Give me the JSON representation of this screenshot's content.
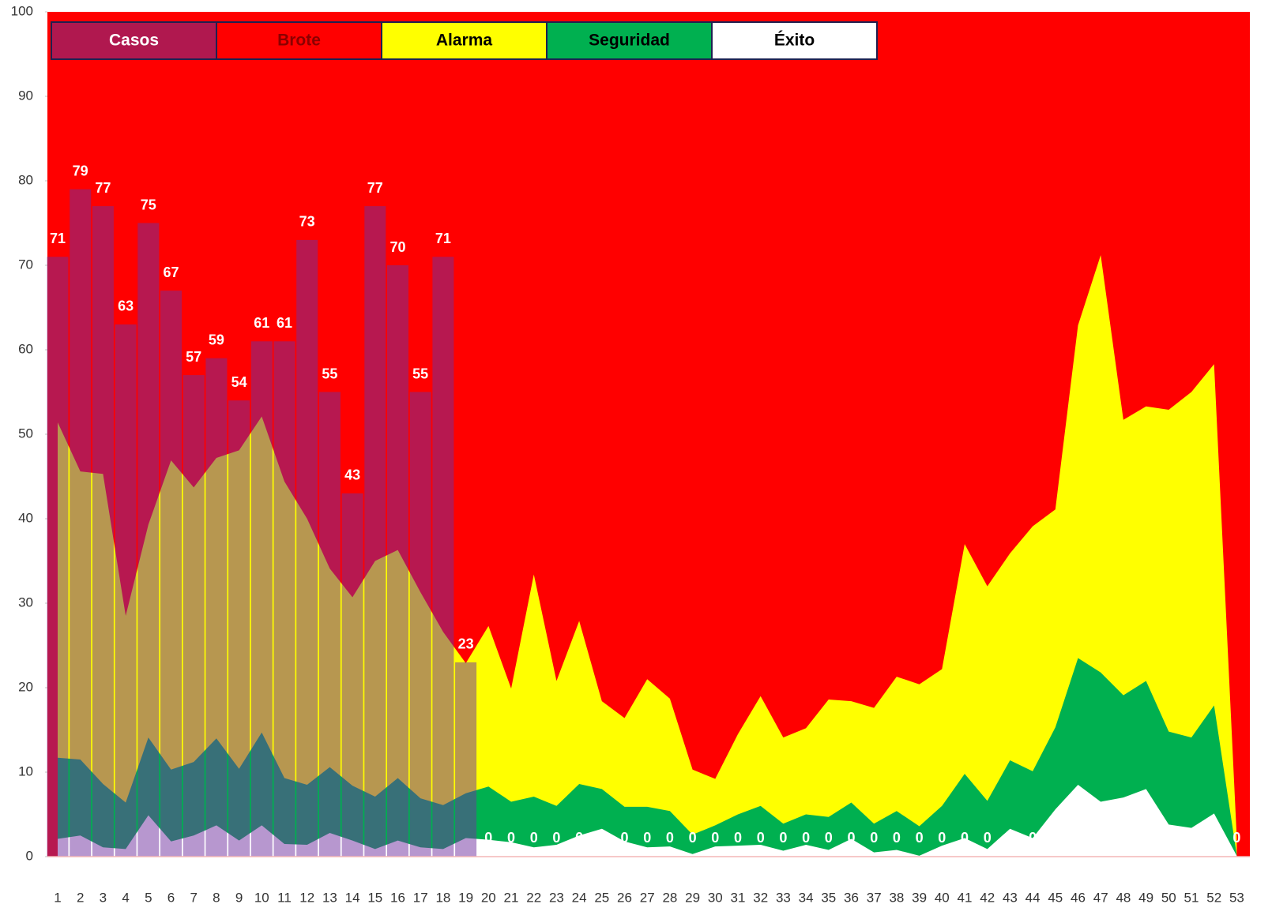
{
  "chart_data": {
    "type": "area",
    "categories": [
      "1",
      "2",
      "3",
      "4",
      "5",
      "6",
      "7",
      "8",
      "9",
      "10",
      "11",
      "12",
      "13",
      "14",
      "15",
      "16",
      "17",
      "18",
      "19",
      "20",
      "21",
      "22",
      "23",
      "24",
      "25",
      "26",
      "27",
      "28",
      "29",
      "30",
      "31",
      "32",
      "33",
      "34",
      "35",
      "36",
      "37",
      "38",
      "39",
      "40",
      "41",
      "42",
      "43",
      "44",
      "45",
      "46",
      "47",
      "48",
      "49",
      "50",
      "51",
      "52",
      "53"
    ],
    "ylim": [
      0,
      100
    ],
    "yticks": [
      0,
      10,
      20,
      30,
      40,
      50,
      60,
      70,
      80,
      90,
      100
    ],
    "series": [
      {
        "name": "Casos",
        "type": "bar",
        "color": "#7030a0",
        "legend_color": "#b0184f",
        "values": [
          71,
          79,
          77,
          63,
          75,
          67,
          57,
          59,
          54,
          61,
          61,
          73,
          55,
          43,
          77,
          70,
          55,
          71,
          23,
          0,
          0,
          0,
          0,
          0,
          0,
          0,
          0,
          0,
          0,
          0,
          0,
          0,
          0,
          0,
          0,
          0,
          0,
          0,
          0,
          0,
          0,
          0,
          0,
          0,
          0,
          0,
          0,
          0,
          0,
          0,
          0,
          0,
          0
        ]
      },
      {
        "name": "Brote",
        "type": "area",
        "color": "#ff0000",
        "values": [
          100,
          100,
          100,
          100,
          100,
          100,
          100,
          100,
          100,
          100,
          100,
          100,
          100,
          100,
          100,
          100,
          100,
          100,
          100,
          100,
          100,
          100,
          100,
          100,
          100,
          100,
          100,
          100,
          100,
          100,
          100,
          100,
          100,
          100,
          100,
          100,
          100,
          100,
          100,
          100,
          100,
          100,
          100,
          100,
          100,
          100,
          100,
          100,
          100,
          100,
          100,
          100,
          100
        ]
      },
      {
        "name": "Alarma",
        "type": "area",
        "color": "#ffff00",
        "values": [
          51.4,
          45.6,
          45.3,
          28.5,
          39.3,
          46.9,
          43.7,
          47.2,
          48.1,
          52.1,
          44.4,
          40,
          34.1,
          30.7,
          35,
          36.3,
          31.3,
          26.6,
          22.9,
          27.3,
          19.9,
          33.4,
          20.8,
          27.9,
          18.4,
          16.4,
          21,
          18.7,
          10.3,
          9.2,
          14.5,
          19,
          14.1,
          15.2,
          18.6,
          18.4,
          17.6,
          21.3,
          20.4,
          22.2,
          37,
          32,
          35.9,
          39.1,
          41.1,
          62.9,
          71.2,
          51.7,
          53.3,
          52.9,
          55,
          58.3,
          2.3
        ]
      },
      {
        "name": "Seguridad",
        "type": "area",
        "color": "#00b050",
        "values": [
          11.7,
          11.5,
          8.6,
          6.4,
          14.1,
          10.3,
          11.2,
          14,
          10.4,
          14.7,
          9.3,
          8.5,
          10.6,
          8.4,
          7.1,
          9.3,
          6.9,
          6.1,
          7.5,
          8.3,
          6.5,
          7.1,
          6,
          8.6,
          8,
          5.9,
          5.9,
          5.4,
          2.6,
          3.7,
          5,
          6,
          3.9,
          5,
          4.7,
          6.4,
          3.9,
          5.4,
          3.6,
          6,
          9.8,
          6.6,
          11.4,
          10.1,
          15.3,
          23.5,
          21.8,
          19.1,
          20.8,
          14.8,
          14.1,
          17.9,
          0.2
        ]
      },
      {
        "name": "Éxito",
        "type": "area",
        "color": "#ffffff",
        "values": [
          2.1,
          2.5,
          1.1,
          0.9,
          4.9,
          1.8,
          2.5,
          3.7,
          1.9,
          3.7,
          1.5,
          1.4,
          2.8,
          1.9,
          0.9,
          1.9,
          1.1,
          0.9,
          2.2,
          2,
          1.7,
          1.1,
          1.4,
          2.5,
          3.3,
          1.8,
          1.1,
          1.2,
          0.3,
          1.2,
          1.3,
          1.4,
          0.7,
          1.4,
          0.8,
          2.1,
          0.5,
          0.8,
          0.1,
          1.3,
          2.2,
          0.9,
          3.3,
          2.2,
          5.6,
          8.5,
          6.5,
          7,
          8,
          3.8,
          3.4,
          5.1,
          0.1
        ]
      }
    ],
    "legend": "top-left"
  }
}
